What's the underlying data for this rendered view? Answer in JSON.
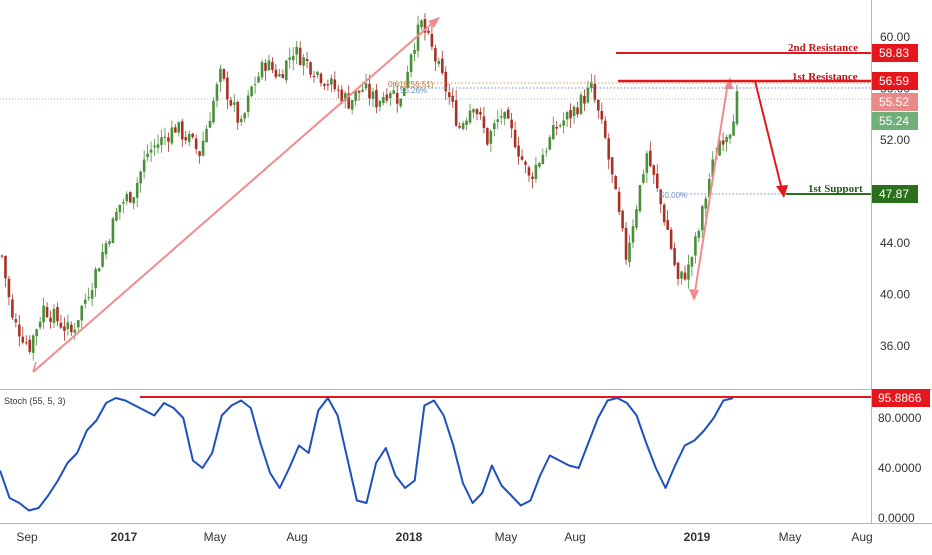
{
  "chart_data": [
    {
      "type": "candlestick",
      "panel": "price",
      "x_ticks": [
        "Sep",
        "2017",
        "May",
        "Aug",
        "2018",
        "May",
        "Aug",
        "2019",
        "May",
        "Aug"
      ],
      "y_ticks": [
        "60.00",
        "56.00",
        "52.00",
        "48.00",
        "44.00",
        "40.00",
        "36.00"
      ],
      "ylim": [
        34.0,
        62.0
      ],
      "grid": false,
      "price_path": [
        [
          0,
          43
        ],
        [
          3,
          38
        ],
        [
          8,
          36
        ],
        [
          12,
          39
        ],
        [
          16,
          38
        ],
        [
          20,
          37
        ],
        [
          26,
          41
        ],
        [
          30,
          44
        ],
        [
          34,
          47
        ],
        [
          38,
          48
        ],
        [
          42,
          51
        ],
        [
          46,
          52
        ],
        [
          50,
          53
        ],
        [
          54,
          52
        ],
        [
          57,
          51
        ],
        [
          60,
          54
        ],
        [
          63,
          57
        ],
        [
          66,
          55
        ],
        [
          69,
          53
        ],
        [
          72,
          56
        ],
        [
          76,
          58
        ],
        [
          80,
          57
        ],
        [
          84,
          59
        ],
        [
          88,
          58
        ],
        [
          92,
          57
        ],
        [
          96,
          56
        ],
        [
          100,
          55
        ],
        [
          104,
          56
        ],
        [
          108,
          55
        ],
        [
          112,
          56
        ],
        [
          115,
          55
        ],
        [
          118,
          59
        ],
        [
          121,
          61
        ],
        [
          124,
          59
        ],
        [
          128,
          56
        ],
        [
          132,
          53
        ],
        [
          136,
          55
        ],
        [
          140,
          52
        ],
        [
          144,
          54
        ],
        [
          148,
          52
        ],
        [
          152,
          49
        ],
        [
          156,
          51
        ],
        [
          160,
          53
        ],
        [
          164,
          54
        ],
        [
          167,
          55
        ],
        [
          170,
          56
        ],
        [
          174,
          52
        ],
        [
          178,
          46
        ],
        [
          180,
          43
        ],
        [
          183,
          47
        ],
        [
          186,
          51
        ],
        [
          189,
          48
        ],
        [
          192,
          45
        ],
        [
          195,
          41
        ],
        [
          198,
          42
        ],
        [
          201,
          45
        ],
        [
          204,
          49
        ],
        [
          207,
          52
        ],
        [
          210,
          53
        ],
        [
          212,
          55.24
        ]
      ],
      "x_index_max": 212,
      "levels": {
        "resistance_2": {
          "label": "2nd Resistance",
          "value": "58.83"
        },
        "resistance_1": {
          "label": "1st Resistance",
          "value": "56.59"
        },
        "support_1": {
          "label": "1st Support",
          "value": "47.87"
        },
        "current_high": {
          "value": "55.52"
        },
        "current_last": {
          "value": "55.24"
        }
      },
      "fib_labels": [
        "0.618(56.51)",
        "55.26%",
        "50.00%"
      ],
      "colors": {
        "up": "#4a8f3a",
        "down": "#a93226",
        "resistance": "#e5171d",
        "support": "#2a6f19",
        "trend": "#f08c8c",
        "grid": "#cfd8dc"
      }
    },
    {
      "type": "line",
      "panel": "stochastic",
      "title": "Stoch (55, 5, 3)",
      "y_ticks": [
        "80.0000",
        "40.0000",
        "0.0000"
      ],
      "ylim": [
        0,
        100
      ],
      "level": "95.8866",
      "values": [
        38,
        16,
        12,
        6,
        8,
        18,
        30,
        44,
        52,
        70,
        78,
        92,
        96,
        94,
        90,
        86,
        82,
        92,
        88,
        80,
        46,
        40,
        52,
        82,
        90,
        94,
        88,
        60,
        36,
        24,
        40,
        58,
        52,
        86,
        96,
        82,
        48,
        14,
        12,
        44,
        56,
        34,
        24,
        30,
        90,
        94,
        82,
        58,
        28,
        12,
        20,
        42,
        26,
        18,
        10,
        14,
        34,
        50,
        46,
        42,
        40,
        60,
        80,
        94,
        96,
        92,
        82,
        60,
        40,
        24,
        42,
        58,
        62,
        70,
        80,
        94,
        95.89
      ],
      "color": "#1f4fbf"
    }
  ]
}
